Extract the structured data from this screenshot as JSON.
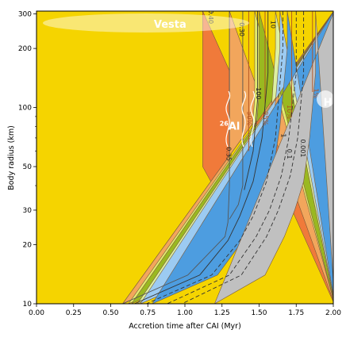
{
  "chart_data": {
    "type": "area",
    "xlabel": "Accretion time after CAI (Myr)",
    "ylabel": "Body radius (km)",
    "xlim": [
      0,
      2.0
    ],
    "ylim": [
      10,
      310
    ],
    "yscale": "log",
    "x_ticks": [
      {
        "value": 0.0,
        "label": "0.00"
      },
      {
        "value": 0.25,
        "label": "0.25"
      },
      {
        "value": 0.5,
        "label": "0.50"
      },
      {
        "value": 0.75,
        "label": "0.75"
      },
      {
        "value": 1.0,
        "label": "1.00"
      },
      {
        "value": 1.25,
        "label": "1.25"
      },
      {
        "value": 1.5,
        "label": "1.50"
      },
      {
        "value": 1.75,
        "label": "1.75"
      },
      {
        "value": 2.0,
        "label": "2.00"
      }
    ],
    "y_ticks": [
      {
        "value": 10,
        "label": "10"
      },
      {
        "value": 20,
        "label": "20"
      },
      {
        "value": 30,
        "label": "30"
      },
      {
        "value": 50,
        "label": "50"
      },
      {
        "value": 100,
        "label": "100"
      },
      {
        "value": 200,
        "label": "200"
      },
      {
        "value": 300,
        "label": "300"
      }
    ],
    "regions": [
      {
        "color": "#f5d400",
        "left": [
          [
            0.0,
            10
          ],
          [
            0.0,
            310
          ]
        ]
      },
      {
        "color": "#f07a3a",
        "left": [
          [
            1.12,
            310
          ],
          [
            1.12,
            50
          ],
          [
            1.19,
            40
          ],
          [
            1.29,
            26
          ],
          [
            1.27,
            22
          ],
          [
            1.02,
            14
          ],
          [
            0.58,
            10
          ]
        ]
      },
      {
        "color": "#f2a65c",
        "left": [
          [
            1.3,
            310
          ],
          [
            1.3,
            40
          ],
          [
            1.29,
            26
          ],
          [
            1.27,
            22
          ],
          [
            1.02,
            14
          ],
          [
            0.58,
            10
          ]
        ]
      },
      {
        "color": "#e4ec6e",
        "left": [
          [
            1.47,
            310
          ],
          [
            1.47,
            110
          ],
          [
            1.44,
            60
          ],
          [
            1.39,
            38
          ],
          [
            1.31,
            26
          ],
          [
            1.24,
            20
          ],
          [
            1.05,
            14
          ],
          [
            0.62,
            10
          ]
        ]
      },
      {
        "color": "#9ab820",
        "left": [
          [
            1.5,
            310
          ],
          [
            1.5,
            120
          ],
          [
            1.47,
            60
          ],
          [
            1.41,
            38
          ],
          [
            1.33,
            26
          ],
          [
            1.26,
            20
          ],
          [
            1.07,
            14
          ],
          [
            0.64,
            10
          ]
        ]
      },
      {
        "color": "#ddf0a0",
        "left": [
          [
            1.61,
            310
          ],
          [
            1.61,
            200
          ],
          [
            1.57,
            70
          ],
          [
            1.51,
            42
          ],
          [
            1.41,
            28
          ],
          [
            1.32,
            21
          ],
          [
            1.12,
            14
          ],
          [
            0.68,
            10
          ]
        ]
      },
      {
        "color": "#9ccbf2",
        "left": [
          [
            1.64,
            310
          ],
          [
            1.64,
            200
          ],
          [
            1.59,
            70
          ],
          [
            1.53,
            42
          ],
          [
            1.44,
            28
          ],
          [
            1.35,
            21
          ],
          [
            1.15,
            14
          ],
          [
            0.7,
            10
          ]
        ]
      },
      {
        "color": "#4d9de0",
        "left": [
          [
            1.69,
            310
          ],
          [
            1.69,
            200
          ],
          [
            1.64,
            80
          ],
          [
            1.59,
            45
          ],
          [
            1.51,
            30
          ],
          [
            1.41,
            22
          ],
          [
            1.22,
            14
          ],
          [
            0.78,
            10
          ]
        ]
      },
      {
        "color": "#c0c0c0",
        "left": [
          [
            1.88,
            310
          ],
          [
            1.88,
            150
          ],
          [
            1.84,
            70
          ],
          [
            1.8,
            42
          ],
          [
            1.74,
            30
          ],
          [
            1.67,
            22
          ],
          [
            1.54,
            14
          ],
          [
            1.2,
            10
          ]
        ]
      }
    ],
    "contours": [
      {
        "label": "0.35",
        "color": "#555555",
        "dashed": false,
        "points": [
          [
            1.3,
            310
          ],
          [
            1.3,
            40
          ],
          [
            1.29,
            26
          ],
          [
            1.27,
            22
          ],
          [
            1.02,
            14
          ],
          [
            0.58,
            10
          ]
        ],
        "label_at": [
          1.28,
          58
        ],
        "rotate": 90
      },
      {
        "label": "0.40",
        "color": "#888888",
        "dashed": false,
        "points": [
          [
            1.18,
            310
          ],
          [
            1.18,
            300
          ]
        ],
        "label_at": [
          1.16,
          290
        ],
        "rotate": 90
      },
      {
        "label": "0.30",
        "color": "#555555",
        "dashed": false,
        "points": [
          [
            1.39,
            310
          ],
          [
            1.39,
            40
          ],
          [
            1.36,
            32
          ],
          [
            1.3,
            27
          ]
        ],
        "label_at": [
          1.37,
          250
        ],
        "rotate": 90
      },
      {
        "label": "50%",
        "color": "#b05020",
        "dashed": false,
        "points": [
          [
            1.43,
            310
          ],
          [
            1.43,
            60
          ]
        ],
        "label_at": [
          1.42,
          88
        ],
        "rotate": 90
      },
      {
        "label": "100",
        "color": "#333333",
        "dashed": false,
        "points": [
          [
            1.49,
            310
          ],
          [
            1.49,
            110
          ],
          [
            1.46,
            60
          ],
          [
            1.4,
            38
          ]
        ],
        "label_at": [
          1.48,
          118
        ],
        "rotate": 90
      },
      {
        "label": "25%",
        "color": "#b05020",
        "dashed": false,
        "points": [
          [
            1.54,
            310
          ],
          [
            1.54,
            100
          ]
        ],
        "label_at": [
          1.53,
          88
        ],
        "rotate": 90
      },
      {
        "label": "10",
        "color": "#333333",
        "dashed": false,
        "points": [
          [
            1.56,
            310
          ],
          [
            1.56,
            150
          ],
          [
            1.52,
            70
          ],
          [
            1.46,
            42
          ],
          [
            1.37,
            28
          ],
          [
            1.29,
            21
          ],
          [
            1.1,
            14
          ],
          [
            0.66,
            10
          ]
        ],
        "label_at": [
          1.58,
          265
        ],
        "rotate": 90
      },
      {
        "label": "1",
        "color": "#333333",
        "dashed": true,
        "points": [
          [
            1.66,
            310
          ],
          [
            1.66,
            200
          ],
          [
            1.61,
            70
          ],
          [
            1.55,
            42
          ],
          [
            1.46,
            28
          ],
          [
            1.37,
            21
          ],
          [
            1.18,
            14
          ],
          [
            0.74,
            10
          ]
        ],
        "label_at": [
          1.65,
          72
        ],
        "rotate": 90
      },
      {
        "label": "10%",
        "color": "#b05020",
        "dashed": false,
        "points": [
          [
            1.72,
            310
          ],
          [
            1.72,
            90
          ]
        ],
        "label_at": [
          1.69,
          95
        ],
        "rotate": 90
      },
      {
        "label": "0.1",
        "color": "#333333",
        "dashed": true,
        "points": [
          [
            1.75,
            310
          ],
          [
            1.75,
            150
          ],
          [
            1.7,
            70
          ],
          [
            1.65,
            45
          ],
          [
            1.57,
            30
          ],
          [
            1.48,
            22
          ],
          [
            1.3,
            14
          ],
          [
            0.88,
            10
          ]
        ],
        "label_at": [
          1.69,
          58
        ],
        "rotate": 90
      },
      {
        "label": "0.001",
        "color": "#333333",
        "dashed": true,
        "points": [
          [
            1.8,
            310
          ],
          [
            1.8,
            150
          ],
          [
            1.76,
            70
          ],
          [
            1.71,
            45
          ],
          [
            1.63,
            30
          ],
          [
            1.55,
            22
          ],
          [
            1.38,
            14
          ],
          [
            0.98,
            10
          ]
        ],
        "label_at": [
          1.78,
          62
        ],
        "rotate": 90
      },
      {
        "label": "1%",
        "color": "#b05020",
        "dashed": false,
        "points": [
          [
            1.86,
            310
          ],
          [
            1.86,
            120
          ]
        ],
        "label_at": [
          1.87,
          118
        ],
        "rotate": 90
      }
    ],
    "annotations": [
      {
        "id": "vesta",
        "text": "Vesta",
        "x": 0.9,
        "y": 265
      },
      {
        "id": "h-marker",
        "text": "H",
        "x": 1.96,
        "y": 107
      },
      {
        "id": "al26",
        "sup": "26",
        "text": "Al",
        "x": 1.33,
        "y": 80
      }
    ]
  }
}
